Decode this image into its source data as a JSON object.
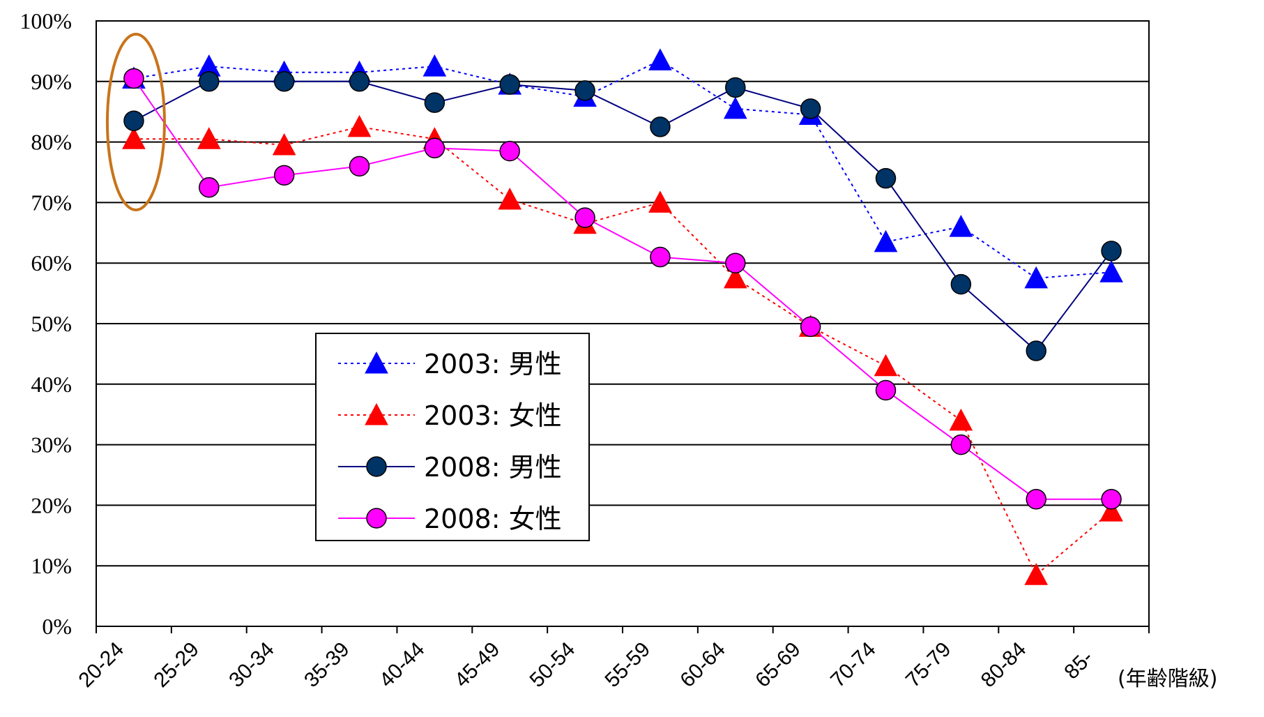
{
  "chart_data": {
    "type": "line",
    "title": "",
    "xlabel": "(年齢階級)",
    "ylabel": "",
    "ylim": [
      0,
      100
    ],
    "yticks": [
      "0%",
      "10%",
      "20%",
      "30%",
      "40%",
      "50%",
      "60%",
      "70%",
      "80%",
      "90%",
      "100%"
    ],
    "categories": [
      "20-24",
      "25-29",
      "30-34",
      "35-39",
      "40-44",
      "45-49",
      "50-54",
      "55-59",
      "60-64",
      "65-69",
      "70-74",
      "75-79",
      "80-84",
      "85-"
    ],
    "grid": "horizontal",
    "legend_position": "center-left",
    "series": [
      {
        "name": "2003: 男性",
        "color": "#0000ff",
        "line_style": "dotted",
        "marker": "triangle",
        "values": [
          90.5,
          92.5,
          91.5,
          91.5,
          92.5,
          89.5,
          87.5,
          93.5,
          85.5,
          84.5,
          63.5,
          66,
          57.5,
          58.5
        ]
      },
      {
        "name": "2003: 女性",
        "color": "#ff0000",
        "line_style": "dotted",
        "marker": "triangle",
        "values": [
          80.5,
          80.5,
          79.5,
          82.5,
          80.5,
          70.5,
          66.5,
          70,
          57.5,
          49.5,
          43,
          34,
          8.5,
          19
        ]
      },
      {
        "name": "2008: 男性",
        "color": "#000080",
        "marker_color": "#003366",
        "line_style": "solid",
        "marker": "circle",
        "values": [
          83.5,
          90,
          90,
          90,
          86.5,
          89.5,
          88.5,
          82.5,
          89,
          85.5,
          74,
          56.5,
          45.5,
          62
        ]
      },
      {
        "name": "2008: 女性",
        "color": "#ff00ff",
        "line_style": "solid",
        "marker": "circle",
        "values": [
          90.5,
          72.5,
          74.5,
          76,
          79,
          78.5,
          67.5,
          61,
          60,
          49.5,
          39,
          30,
          21,
          21
        ]
      }
    ],
    "annotation": {
      "shape": "ellipse",
      "color": "#c8741a",
      "category": "20-24"
    }
  }
}
